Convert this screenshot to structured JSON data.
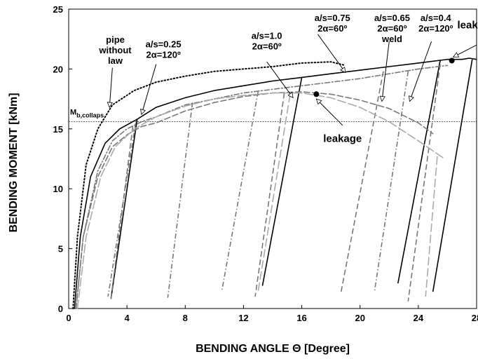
{
  "chart_data": {
    "type": "line",
    "title": "",
    "xlabel": "BENDING ANGLE Θ [Degree]",
    "ylabel": "BENDING MOMENT  [kNm]",
    "xlim": [
      0,
      28
    ],
    "ylim": [
      0,
      25
    ],
    "xticks": [
      0,
      4,
      8,
      12,
      16,
      20,
      24,
      28
    ],
    "yticks": [
      0,
      5,
      10,
      15,
      20,
      25
    ],
    "grid": false,
    "reference_line": {
      "label": "M",
      "subscript": "b,collaps",
      "y": 15.6
    },
    "annotations": [
      {
        "id": "pipe",
        "lines": [
          "pipe",
          "without",
          "law"
        ],
        "x": 3.2,
        "y": 22.2
      },
      {
        "id": "a025",
        "lines": [
          "a/s=0.25",
          "2α=120º"
        ],
        "x": 6.5,
        "y": 21.8
      },
      {
        "id": "a10",
        "lines": [
          "a/s=1.0",
          "2α=60º"
        ],
        "x": 13.6,
        "y": 22.5
      },
      {
        "id": "a075",
        "lines": [
          "a/s=0.75",
          "2α=60º"
        ],
        "x": 18.1,
        "y": 24.0
      },
      {
        "id": "a065",
        "lines": [
          "a/s=0.65",
          "2α=60º",
          "weld"
        ],
        "x": 22.2,
        "y": 24.0
      },
      {
        "id": "a04",
        "lines": [
          "a/s=0.4",
          "2α=120º"
        ],
        "x": 25.2,
        "y": 24.0
      },
      {
        "id": "leak1",
        "lines": [
          "leakage"
        ],
        "x": 28.0,
        "y": 23.4
      },
      {
        "id": "leak2",
        "lines": [
          "leakage"
        ],
        "x": 18.8,
        "y": 13.9
      }
    ],
    "series": [
      {
        "style": "solid",
        "color": "#000000",
        "width": 1.6,
        "points": [
          [
            0.4,
            0
          ],
          [
            0.8,
            6
          ],
          [
            1.5,
            11
          ],
          [
            2.5,
            13.8
          ],
          [
            3.5,
            15
          ],
          [
            4.7,
            15.8
          ],
          [
            6,
            16.8
          ],
          [
            8,
            17.6
          ],
          [
            10,
            18.2
          ],
          [
            12,
            18.6
          ],
          [
            14,
            19
          ],
          [
            16,
            19.3
          ],
          [
            18,
            19.6
          ],
          [
            20,
            19.9
          ],
          [
            22,
            20.2
          ],
          [
            24,
            20.5
          ],
          [
            26,
            20.8
          ],
          [
            27,
            20.8
          ],
          [
            27.5,
            20.9
          ],
          [
            28,
            20.8
          ]
        ],
        "unloads": [
          [
            4.7,
            15.8,
            2.9,
            0.8
          ],
          [
            16.0,
            19.3,
            13.3,
            1.9
          ],
          [
            25.5,
            20.7,
            22.6,
            2.1
          ],
          [
            27.7,
            20.8,
            25.0,
            1.4
          ]
        ]
      },
      {
        "style": "dot",
        "color": "#000000",
        "width": 2.0,
        "points": [
          [
            0.3,
            0
          ],
          [
            0.6,
            6
          ],
          [
            1.2,
            12
          ],
          [
            2,
            15
          ],
          [
            3,
            17
          ],
          [
            4.5,
            18.2
          ],
          [
            6,
            18.9
          ],
          [
            8,
            19.4
          ],
          [
            10,
            19.8
          ],
          [
            12,
            20
          ],
          [
            14,
            20.2
          ],
          [
            16,
            20.5
          ],
          [
            18,
            20.6
          ],
          [
            19,
            20.3
          ]
        ],
        "unloads": []
      },
      {
        "style": "dash",
        "color": "#777777",
        "width": 1.6,
        "points": [
          [
            0.5,
            0
          ],
          [
            1,
            6
          ],
          [
            2,
            11
          ],
          [
            3,
            13.5
          ],
          [
            4,
            14.5
          ],
          [
            5,
            15.2
          ],
          [
            6,
            15.5
          ],
          [
            8,
            16.5
          ],
          [
            10,
            17.2
          ],
          [
            12,
            17.7
          ],
          [
            14,
            18
          ],
          [
            16,
            18.1
          ],
          [
            18,
            17.9
          ],
          [
            20,
            17.4
          ],
          [
            22,
            16.7
          ],
          [
            24,
            15.5
          ],
          [
            25,
            14.6
          ]
        ],
        "unloads": [
          [
            4.4,
            15.2,
            2.9,
            0.8
          ],
          [
            14.8,
            18.0,
            12.8,
            1.0
          ],
          [
            21.6,
            19.8,
            18.7,
            1.4
          ],
          [
            25.5,
            20.4,
            23.3,
            0.6
          ]
        ]
      },
      {
        "style": "dashdot",
        "color": "#777777",
        "width": 1.6,
        "points": [
          [
            0.5,
            0
          ],
          [
            1,
            6
          ],
          [
            2,
            11.5
          ],
          [
            3,
            14
          ],
          [
            4,
            15
          ],
          [
            5,
            15.6
          ],
          [
            6,
            16
          ],
          [
            8,
            17
          ],
          [
            10,
            17.5
          ],
          [
            12,
            18
          ],
          [
            14,
            18.3
          ],
          [
            16,
            18.6
          ],
          [
            18,
            18.9
          ],
          [
            20,
            19.2
          ],
          [
            22,
            19.6
          ],
          [
            24,
            20
          ],
          [
            26,
            20.3
          ]
        ],
        "unloads": [
          [
            4.6,
            15.5,
            2.7,
            1.0
          ],
          [
            8.5,
            17.2,
            6.8,
            0.9
          ],
          [
            13.0,
            18.1,
            10.5,
            1.4
          ],
          [
            23.3,
            19.8,
            21.0,
            1.5
          ]
        ]
      },
      {
        "style": "longdash",
        "color": "#aaaaaa",
        "width": 1.6,
        "points": [
          [
            0.6,
            0
          ],
          [
            1.2,
            6
          ],
          [
            2.2,
            11
          ],
          [
            3.2,
            13.5
          ],
          [
            4.5,
            15
          ],
          [
            6,
            16
          ],
          [
            8,
            16.9
          ],
          [
            10,
            17.5
          ],
          [
            12,
            17.8
          ],
          [
            14,
            18
          ],
          [
            16,
            18
          ],
          [
            18,
            17.6
          ],
          [
            20,
            16.8
          ],
          [
            22,
            15.6
          ],
          [
            24,
            14
          ],
          [
            25.8,
            12.5
          ]
        ],
        "unloads": [
          [
            15.2,
            17.9,
            13.0,
            1.4
          ],
          [
            25.3,
            12.7,
            24.5,
            1.0
          ]
        ]
      }
    ]
  }
}
